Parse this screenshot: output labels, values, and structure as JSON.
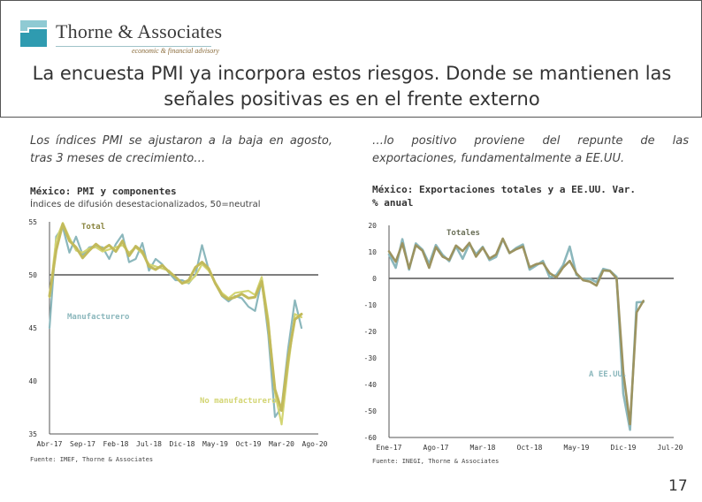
{
  "brand": {
    "name": "Thorne & Associates",
    "tagline": "economic & financial advisory",
    "colors": {
      "teal": "#2f9bb0",
      "teal_light": "#8fcad3",
      "gold": "#8a6b3a"
    }
  },
  "title": "La encuesta PMI ya incorpora estos riesgos. Donde se mantienen las señales positivas es en el frente externo",
  "left_panel": {
    "intro": "Los índices PMI se ajustaron a la baja en agosto, tras 3 meses de crecimiento…",
    "chart_title": "México: PMI y componentes",
    "chart_subtitle": "Índices de difusión desestacionalizados, 50=neutral",
    "source": "Fuente: IMEF, Thorne & Associates"
  },
  "right_panel": {
    "intro": "…lo positivo proviene del repunte de las exportaciones, fundamentalmente a EE.UU.",
    "chart_title": "México: Exportaciones totales y a EE.UU. Var. % anual",
    "source": "Fuente: INEGI, Thorne & Associates"
  },
  "page_number": "17",
  "chart_data": [
    {
      "type": "line",
      "title": "México: PMI y componentes",
      "subtitle": "Índices de difusión desestacionalizados, 50=neutral",
      "x_start": "Abr-17",
      "x_tick_labels": [
        "Abr-17",
        "Sep-17",
        "Feb-18",
        "Jul-18",
        "Dic-18",
        "May-19",
        "Oct-19",
        "Mar-20",
        "Ago-20"
      ],
      "x_tick_index": [
        0,
        5,
        10,
        15,
        20,
        25,
        30,
        35,
        40
      ],
      "ylim": [
        35,
        55
      ],
      "y_ticks": [
        35,
        40,
        45,
        50,
        55
      ],
      "reference_line": 50,
      "series": [
        {
          "name": "Total",
          "color": "#c2ba5b",
          "values": [
            48.0,
            52.3,
            54.8,
            53.2,
            52.6,
            51.6,
            52.3,
            52.9,
            52.4,
            52.8,
            52.2,
            53.2,
            51.8,
            52.7,
            52.2,
            50.8,
            50.5,
            50.9,
            50.3,
            49.8,
            49.2,
            49.5,
            50.7,
            51.2,
            50.6,
            49.2,
            48.1,
            47.7,
            47.9,
            48.2,
            47.8,
            47.9,
            49.4,
            45.2,
            39.2,
            37.2,
            42.2,
            45.8,
            46.3
          ]
        },
        {
          "name": "Manufacturero",
          "color": "#8bb7bc",
          "values": [
            45.0,
            53.6,
            54.5,
            52.1,
            53.6,
            51.9,
            52.6,
            52.7,
            52.6,
            51.5,
            52.9,
            53.8,
            51.2,
            51.5,
            53.0,
            50.4,
            51.5,
            51.0,
            50.2,
            49.5,
            49.5,
            49.2,
            50.0,
            52.8,
            50.5,
            49.2,
            48.0,
            47.5,
            48.0,
            47.8,
            47.0,
            46.6,
            49.5,
            44.3,
            36.6,
            37.5,
            43.1,
            47.6,
            45.0
          ]
        },
        {
          "name": "No manufacturero",
          "color": "#d3d573",
          "values": [
            47.9,
            53.3,
            54.9,
            53.5,
            52.3,
            52.1,
            52.5,
            52.6,
            52.2,
            52.4,
            52.6,
            52.8,
            52.1,
            52.6,
            52.0,
            51.0,
            50.8,
            50.6,
            50.4,
            49.8,
            49.2,
            49.3,
            49.9,
            51.0,
            50.4,
            49.3,
            48.3,
            47.8,
            48.3,
            48.4,
            48.5,
            48.1,
            49.8,
            45.8,
            38.9,
            35.9,
            41.4,
            46.3,
            46.0
          ]
        }
      ]
    },
    {
      "type": "line",
      "title": "México: Exportaciones totales y a EE.UU. Var. % anual",
      "x_start": "Ene-17",
      "x_tick_labels": [
        "Ene-17",
        "Ago-17",
        "Mar-18",
        "Oct-18",
        "May-19",
        "Dic-19",
        "Jul-20"
      ],
      "x_tick_index": [
        0,
        7,
        14,
        21,
        28,
        35,
        42
      ],
      "ylim": [
        -60,
        20
      ],
      "y_ticks": [
        -60,
        -50,
        -40,
        -30,
        -20,
        -10,
        0,
        10,
        20
      ],
      "reference_line": 0,
      "series": [
        {
          "name": "Totales",
          "color": "#9c9360",
          "values": [
            10.2,
            6.3,
            13.2,
            3.8,
            12.5,
            10.4,
            4.0,
            11.8,
            8.2,
            7.0,
            12.4,
            10.3,
            13.4,
            8.2,
            11.6,
            7.5,
            9.0,
            15.0,
            9.6,
            11.0,
            12.0,
            4.2,
            5.4,
            5.8,
            2.0,
            0.4,
            4.1,
            6.6,
            1.9,
            -0.7,
            -1.2,
            -2.7,
            3.0,
            2.8,
            0.0,
            -35.4,
            -55.0,
            -12.8,
            -8.5
          ]
        },
        {
          "name": "A EE.UU.",
          "color": "#8bb7bc",
          "values": [
            9.0,
            4.0,
            14.8,
            3.3,
            13.2,
            10.8,
            5.5,
            12.6,
            8.9,
            6.5,
            12.1,
            7.4,
            13.0,
            9.1,
            11.9,
            6.9,
            8.1,
            14.8,
            9.5,
            11.5,
            12.8,
            3.3,
            4.9,
            6.6,
            0.4,
            1.3,
            5.0,
            12.0,
            1.3,
            -0.4,
            -0.1,
            -1.4,
            3.6,
            2.9,
            0.6,
            -43.5,
            -57.1,
            -9.0,
            -8.9
          ]
        }
      ]
    }
  ]
}
